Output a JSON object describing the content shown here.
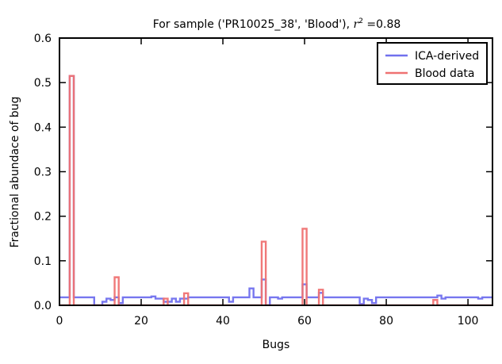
{
  "chart_data": {
    "type": "line",
    "title": "For sample ('PR10025_38', 'Blood'), r² =0.88",
    "title_parts": {
      "prefix": "For sample ('PR10025_38', 'Blood'), ",
      "var": "r",
      "sup": "2",
      "suffix": " =0.88"
    },
    "xlabel": "Bugs",
    "ylabel": "Fractional abundace of bug",
    "xlim": [
      0,
      106
    ],
    "ylim": [
      0,
      0.6
    ],
    "x_ticks": [
      0,
      20,
      40,
      60,
      80,
      100
    ],
    "y_ticks": [
      0.0,
      0.1,
      0.2,
      0.3,
      0.4,
      0.5,
      0.6
    ],
    "y_tick_labels": [
      "0.0",
      "0.1",
      "0.2",
      "0.3",
      "0.4",
      "0.5",
      "0.6"
    ],
    "step": "mid",
    "legend": {
      "position": "top-right"
    },
    "series": [
      {
        "name": "ICA-derived",
        "color": "#7070ee",
        "values": [
          0.018,
          0.018,
          0.018,
          0.515,
          0.018,
          0.018,
          0.018,
          0.018,
          0.018,
          0.0,
          0.0,
          0.008,
          0.015,
          0.012,
          0.018,
          0.005,
          0.018,
          0.018,
          0.018,
          0.018,
          0.018,
          0.018,
          0.018,
          0.02,
          0.015,
          0.015,
          0.008,
          0.008,
          0.015,
          0.008,
          0.015,
          0.015,
          0.018,
          0.018,
          0.018,
          0.018,
          0.018,
          0.018,
          0.018,
          0.018,
          0.018,
          0.018,
          0.008,
          0.018,
          0.018,
          0.018,
          0.018,
          0.038,
          0.018,
          0.018,
          0.058,
          0.0,
          0.018,
          0.018,
          0.015,
          0.018,
          0.018,
          0.018,
          0.018,
          0.018,
          0.047,
          0.018,
          0.018,
          0.018,
          0.028,
          0.018,
          0.018,
          0.018,
          0.018,
          0.018,
          0.018,
          0.018,
          0.018,
          0.018,
          0.003,
          0.015,
          0.012,
          0.005,
          0.018,
          0.018,
          0.018,
          0.018,
          0.018,
          0.018,
          0.018,
          0.018,
          0.018,
          0.018,
          0.018,
          0.018,
          0.018,
          0.018,
          0.018,
          0.022,
          0.015,
          0.018,
          0.018,
          0.018,
          0.018,
          0.018,
          0.018,
          0.018,
          0.018,
          0.015,
          0.018,
          0.018,
          0.018
        ]
      },
      {
        "name": "Blood data",
        "color": "#ef7272",
        "values": [
          0,
          0,
          0,
          0.515,
          0,
          0,
          0,
          0,
          0,
          0,
          0,
          0,
          0,
          0,
          0.063,
          0,
          0,
          0,
          0,
          0,
          0,
          0,
          0,
          0,
          0,
          0,
          0.015,
          0,
          0,
          0,
          0,
          0.027,
          0,
          0,
          0,
          0,
          0,
          0,
          0,
          0,
          0,
          0,
          0,
          0,
          0,
          0,
          0,
          0,
          0,
          0,
          0.143,
          0,
          0,
          0,
          0,
          0,
          0,
          0,
          0,
          0,
          0.172,
          0,
          0,
          0,
          0.035,
          0,
          0,
          0,
          0,
          0,
          0,
          0,
          0,
          0,
          0,
          0,
          0,
          0,
          0,
          0,
          0,
          0,
          0,
          0,
          0,
          0,
          0,
          0,
          0,
          0,
          0,
          0,
          0.012,
          0,
          0,
          0,
          0,
          0,
          0,
          0,
          0,
          0,
          0,
          0,
          0,
          0,
          0
        ]
      }
    ]
  }
}
